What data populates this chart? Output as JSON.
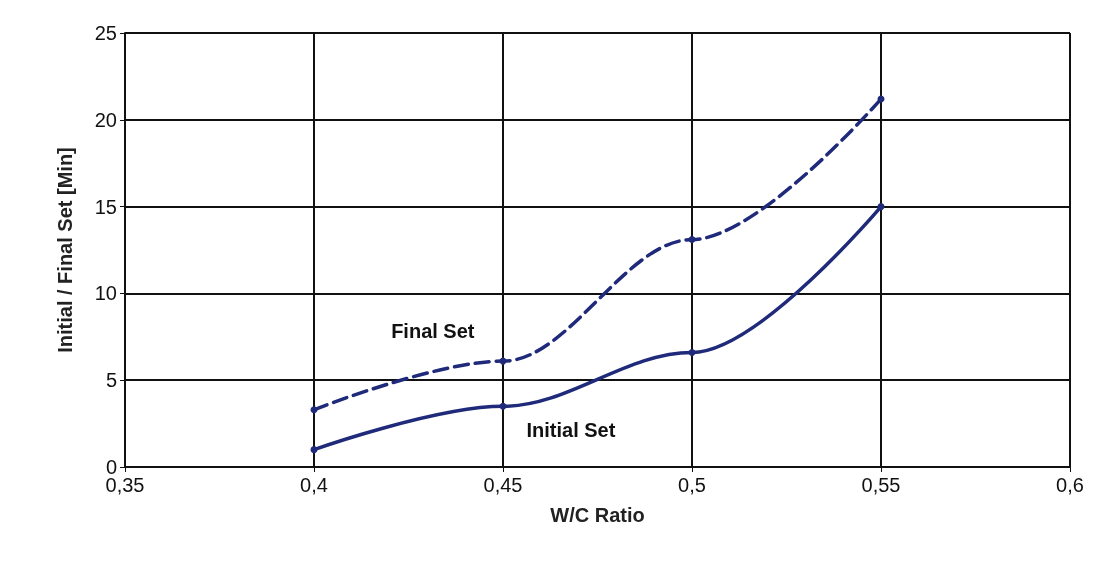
{
  "chart_data": {
    "type": "line",
    "xlabel": "W/C Ratio",
    "ylabel": "Initial / Final Set [Min]",
    "x": [
      0.4,
      0.45,
      0.5,
      0.55
    ],
    "series": [
      {
        "name": "Final Set",
        "color": "#1f2a7a",
        "values": [
          3.3,
          6.1,
          13.1,
          21.2
        ],
        "line_style": "dashed"
      },
      {
        "name": "Initial Set",
        "color": "#1f2a7a",
        "values": [
          1.0,
          3.5,
          6.6,
          15.0
        ],
        "line_style": "solid"
      }
    ],
    "xlim": [
      0.35,
      0.6
    ],
    "xticks": [
      {
        "value": 0.35,
        "label": "0,35"
      },
      {
        "value": 0.4,
        "label": "0,4"
      },
      {
        "value": 0.45,
        "label": "0,45"
      },
      {
        "value": 0.5,
        "label": "0,5"
      },
      {
        "value": 0.55,
        "label": "0,55"
      },
      {
        "value": 0.6,
        "label": "0,6"
      }
    ],
    "ylim": [
      0,
      25
    ],
    "yticks": [
      0,
      5,
      10,
      15,
      20,
      25
    ],
    "grid": true,
    "marker": "circle",
    "legend": false
  }
}
